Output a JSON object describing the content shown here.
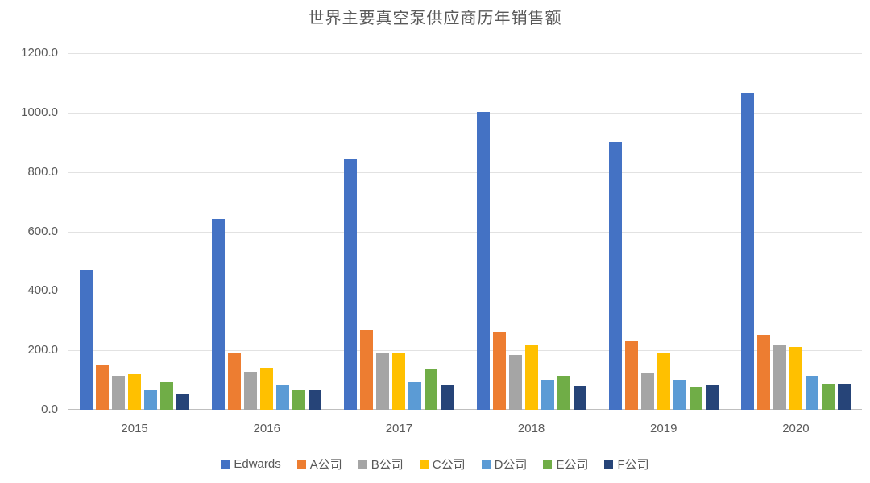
{
  "title": "世界主要真空泵供应商历年销售额",
  "chart_data": {
    "type": "bar",
    "title": "世界主要真空泵供应商历年销售额",
    "categories": [
      "2015",
      "2016",
      "2017",
      "2018",
      "2019",
      "2020"
    ],
    "series": [
      {
        "name": "Edwards",
        "key": "edwards",
        "color": "#4472C4",
        "values": [
          472,
          641,
          846,
          1003,
          901,
          1064
        ]
      },
      {
        "name": "A公司",
        "key": "company-a",
        "color": "#ED7D31",
        "values": [
          148,
          193,
          268,
          264,
          230,
          252
        ]
      },
      {
        "name": "B公司",
        "key": "company-b",
        "color": "#A5A5A5",
        "values": [
          114,
          128,
          190,
          185,
          124,
          216
        ]
      },
      {
        "name": "C公司",
        "key": "company-c",
        "color": "#FFC000",
        "values": [
          120,
          140,
          192,
          220,
          190,
          210
        ]
      },
      {
        "name": "D公司",
        "key": "company-d",
        "color": "#5B9BD5",
        "values": [
          66,
          85,
          95,
          100,
          99,
          113
        ]
      },
      {
        "name": "E公司",
        "key": "company-e",
        "color": "#70AD47",
        "values": [
          92,
          67,
          135,
          113,
          75,
          88
        ]
      },
      {
        "name": "F公司",
        "key": "company-f",
        "color": "#264478",
        "values": [
          55,
          65,
          83,
          80,
          84,
          87
        ]
      }
    ],
    "xlabel": "",
    "ylabel": "",
    "ylim": [
      0,
      1200
    ],
    "y_ticks": [
      "0.0",
      "200.0",
      "400.0",
      "600.0",
      "800.0",
      "1000.0",
      "1200.0"
    ],
    "grid": true,
    "legend_position": "bottom"
  },
  "colors": {
    "gridline": "#E2E2E2",
    "axis_line": "#BFBFBF",
    "text": "#595959",
    "background": "#FFFFFF"
  }
}
